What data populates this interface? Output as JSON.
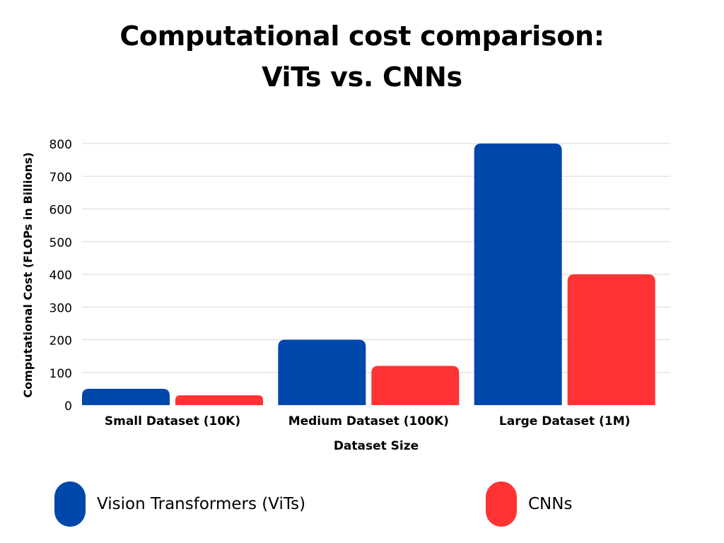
{
  "title_lines": [
    "Computational cost comparison:",
    "ViTs vs. CNNs"
  ],
  "colors": {
    "vits": "#0047AB",
    "cnns": "#FF3333",
    "grid": "#d9d9d9"
  },
  "chart_data": {
    "type": "bar",
    "title": "Computational cost comparison: ViTs vs. CNNs",
    "xlabel": "Dataset Size",
    "ylabel": "Computational Cost (FLOPs in Billions)",
    "categories": [
      "Small Dataset (10K)",
      "Medium Dataset (100K)",
      "Large Dataset (1M)"
    ],
    "series": [
      {
        "name": "Vision Transformers (ViTs)",
        "values": [
          50,
          200,
          800
        ]
      },
      {
        "name": "CNNs",
        "values": [
          30,
          120,
          400
        ]
      }
    ],
    "ylim": [
      0,
      800
    ],
    "yticks": [
      0,
      100,
      200,
      300,
      400,
      500,
      600,
      700,
      800
    ],
    "grid": true,
    "legend_position": "bottom"
  }
}
